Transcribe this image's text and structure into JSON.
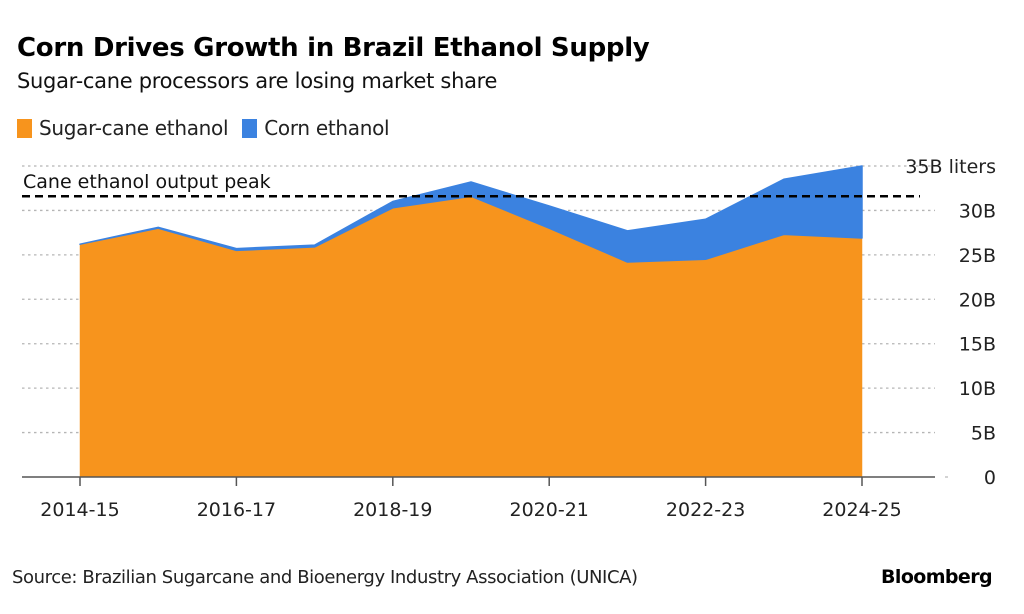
{
  "header": {
    "title": "Corn Drives Growth in Brazil Ethanol Supply",
    "subtitle": "Sugar-cane processors are losing market share"
  },
  "legend": [
    {
      "label": "Sugar-cane ethanol",
      "color": "#f7941d"
    },
    {
      "label": "Corn ethanol",
      "color": "#3b82e0"
    }
  ],
  "footer": {
    "source": "Source: Brazilian Sugarcane and Bioenergy Industry Association (UNICA)",
    "brand": "Bloomberg"
  },
  "chart_data": {
    "type": "area",
    "stacked": true,
    "title": "Corn Drives Growth in Brazil Ethanol Supply",
    "subtitle": "Sugar-cane processors are losing market share",
    "x": [
      "2014-15",
      "2015-16",
      "2016-17",
      "2017-18",
      "2018-19",
      "2019-20",
      "2020-21",
      "2021-22",
      "2022-23",
      "2023-24",
      "2024-25"
    ],
    "x_tick_labels": [
      "2014-15",
      "2016-17",
      "2018-19",
      "2020-21",
      "2022-23",
      "2024-25"
    ],
    "series": [
      {
        "name": "Sugar-cane ethanol",
        "color": "#f7941d",
        "values": [
          26.2,
          28.0,
          25.5,
          25.9,
          30.3,
          31.6,
          28.0,
          24.2,
          24.5,
          27.3,
          26.9
        ]
      },
      {
        "name": "Corn ethanol",
        "color": "#3b82e0",
        "values": [
          0.0,
          0.1,
          0.2,
          0.2,
          0.7,
          1.6,
          2.5,
          3.5,
          4.5,
          6.2,
          8.1
        ]
      }
    ],
    "ylim": [
      0,
      35
    ],
    "y_ticks": [
      0,
      5,
      10,
      15,
      20,
      25,
      30,
      35
    ],
    "y_tick_labels": [
      "0",
      "5B",
      "10B",
      "15B",
      "20B",
      "25B",
      "30B",
      "35B liters"
    ],
    "y_axis_side": "right",
    "xlabel": "",
    "ylabel": "",
    "grid": true,
    "legend_position": "top-left",
    "annotations": [
      {
        "type": "hline",
        "value": 31.6,
        "style": "dashed",
        "label": "Cane ethanol output peak"
      }
    ]
  }
}
